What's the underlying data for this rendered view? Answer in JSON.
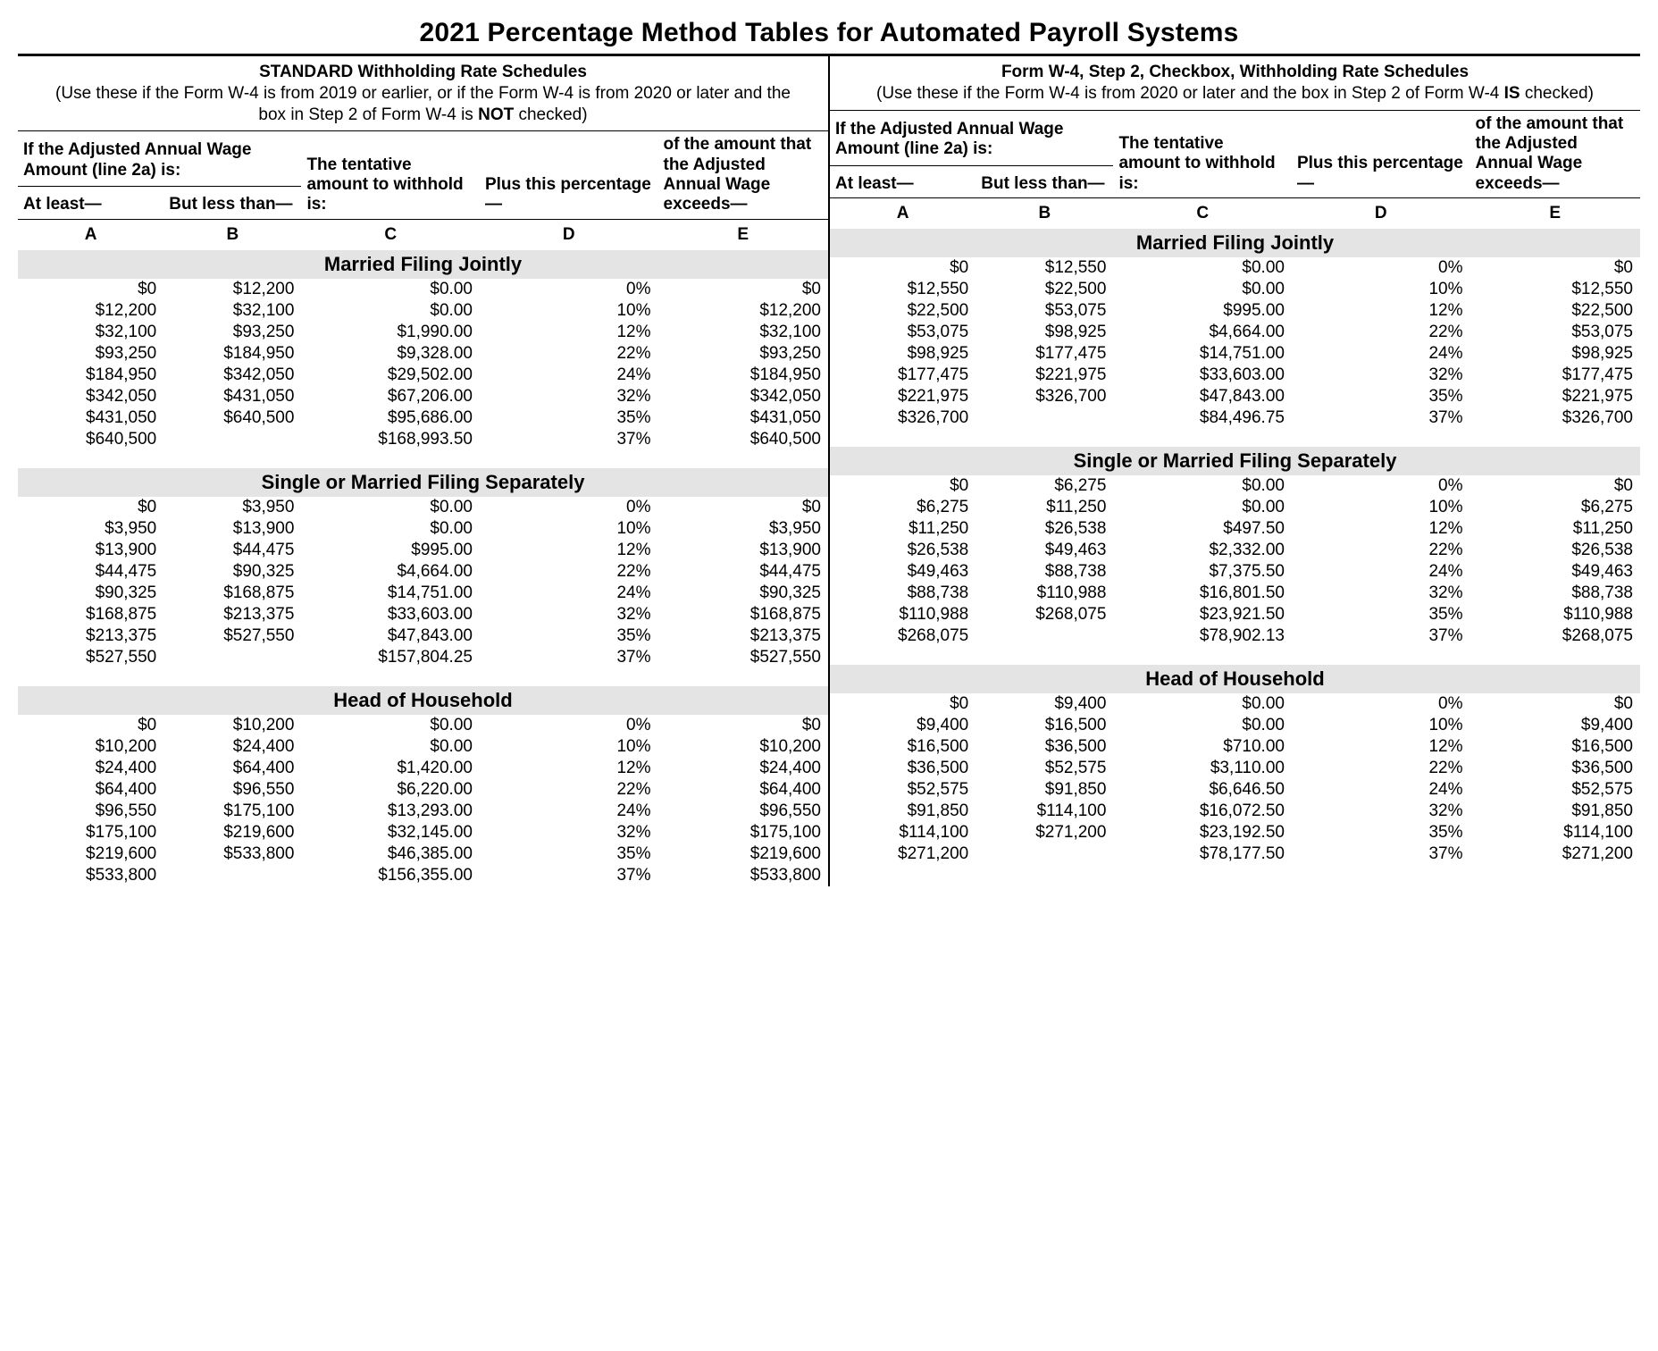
{
  "title": "2021 Percentage Method Tables for Automated Payroll Systems",
  "columns": {
    "upper_AB": "If the Adjusted Annual Wage Amount (line 2a) is:",
    "A": "At least—",
    "B": "But less than—",
    "C_upper": "The tentative",
    "C_lower": "amount to withhold is:",
    "D": "Plus this percentage—",
    "E_upper": "of the amount that the Adjusted",
    "E_lower": "Annual Wage exceeds—",
    "letters": [
      "A",
      "B",
      "C",
      "D",
      "E"
    ]
  },
  "left": {
    "head_bold": "STANDARD Withholding Rate Schedules",
    "head_plain_pre": "(Use these if the Form W-4 is from 2019 or earlier, or if the Form W-4 is from 2020 or later and the box in Step 2 of Form W-4 is ",
    "head_plain_bold": "NOT",
    "head_plain_post": " checked)",
    "sections": [
      {
        "name": "Married Filing Jointly",
        "rows": [
          [
            "$0",
            "$12,200",
            "$0.00",
            "0%",
            "$0"
          ],
          [
            "$12,200",
            "$32,100",
            "$0.00",
            "10%",
            "$12,200"
          ],
          [
            "$32,100",
            "$93,250",
            "$1,990.00",
            "12%",
            "$32,100"
          ],
          [
            "$93,250",
            "$184,950",
            "$9,328.00",
            "22%",
            "$93,250"
          ],
          [
            "$184,950",
            "$342,050",
            "$29,502.00",
            "24%",
            "$184,950"
          ],
          [
            "$342,050",
            "$431,050",
            "$67,206.00",
            "32%",
            "$342,050"
          ],
          [
            "$431,050",
            "$640,500",
            "$95,686.00",
            "35%",
            "$431,050"
          ],
          [
            "$640,500",
            "",
            "$168,993.50",
            "37%",
            "$640,500"
          ]
        ]
      },
      {
        "name": "Single or Married Filing Separately",
        "rows": [
          [
            "$0",
            "$3,950",
            "$0.00",
            "0%",
            "$0"
          ],
          [
            "$3,950",
            "$13,900",
            "$0.00",
            "10%",
            "$3,950"
          ],
          [
            "$13,900",
            "$44,475",
            "$995.00",
            "12%",
            "$13,900"
          ],
          [
            "$44,475",
            "$90,325",
            "$4,664.00",
            "22%",
            "$44,475"
          ],
          [
            "$90,325",
            "$168,875",
            "$14,751.00",
            "24%",
            "$90,325"
          ],
          [
            "$168,875",
            "$213,375",
            "$33,603.00",
            "32%",
            "$168,875"
          ],
          [
            "$213,375",
            "$527,550",
            "$47,843.00",
            "35%",
            "$213,375"
          ],
          [
            "$527,550",
            "",
            "$157,804.25",
            "37%",
            "$527,550"
          ]
        ]
      },
      {
        "name": "Head of Household",
        "rows": [
          [
            "$0",
            "$10,200",
            "$0.00",
            "0%",
            "$0"
          ],
          [
            "$10,200",
            "$24,400",
            "$0.00",
            "10%",
            "$10,200"
          ],
          [
            "$24,400",
            "$64,400",
            "$1,420.00",
            "12%",
            "$24,400"
          ],
          [
            "$64,400",
            "$96,550",
            "$6,220.00",
            "22%",
            "$64,400"
          ],
          [
            "$96,550",
            "$175,100",
            "$13,293.00",
            "24%",
            "$96,550"
          ],
          [
            "$175,100",
            "$219,600",
            "$32,145.00",
            "32%",
            "$175,100"
          ],
          [
            "$219,600",
            "$533,800",
            "$46,385.00",
            "35%",
            "$219,600"
          ],
          [
            "$533,800",
            "",
            "$156,355.00",
            "37%",
            "$533,800"
          ]
        ]
      }
    ]
  },
  "right": {
    "head_bold": "Form W-4, Step 2, Checkbox, Withholding Rate Schedules",
    "head_plain_pre": "(Use these if the Form W-4 is from 2020 or later and the box in Step 2 of Form W-4 ",
    "head_plain_bold": "IS",
    "head_plain_post": " checked)",
    "sections": [
      {
        "name": "Married Filing Jointly",
        "rows": [
          [
            "$0",
            "$12,550",
            "$0.00",
            "0%",
            "$0"
          ],
          [
            "$12,550",
            "$22,500",
            "$0.00",
            "10%",
            "$12,550"
          ],
          [
            "$22,500",
            "$53,075",
            "$995.00",
            "12%",
            "$22,500"
          ],
          [
            "$53,075",
            "$98,925",
            "$4,664.00",
            "22%",
            "$53,075"
          ],
          [
            "$98,925",
            "$177,475",
            "$14,751.00",
            "24%",
            "$98,925"
          ],
          [
            "$177,475",
            "$221,975",
            "$33,603.00",
            "32%",
            "$177,475"
          ],
          [
            "$221,975",
            "$326,700",
            "$47,843.00",
            "35%",
            "$221,975"
          ],
          [
            "$326,700",
            "",
            "$84,496.75",
            "37%",
            "$326,700"
          ]
        ]
      },
      {
        "name": "Single or Married Filing Separately",
        "rows": [
          [
            "$0",
            "$6,275",
            "$0.00",
            "0%",
            "$0"
          ],
          [
            "$6,275",
            "$11,250",
            "$0.00",
            "10%",
            "$6,275"
          ],
          [
            "$11,250",
            "$26,538",
            "$497.50",
            "12%",
            "$11,250"
          ],
          [
            "$26,538",
            "$49,463",
            "$2,332.00",
            "22%",
            "$26,538"
          ],
          [
            "$49,463",
            "$88,738",
            "$7,375.50",
            "24%",
            "$49,463"
          ],
          [
            "$88,738",
            "$110,988",
            "$16,801.50",
            "32%",
            "$88,738"
          ],
          [
            "$110,988",
            "$268,075",
            "$23,921.50",
            "35%",
            "$110,988"
          ],
          [
            "$268,075",
            "",
            "$78,902.13",
            "37%",
            "$268,075"
          ]
        ]
      },
      {
        "name": "Head of Household",
        "rows": [
          [
            "$0",
            "$9,400",
            "$0.00",
            "0%",
            "$0"
          ],
          [
            "$9,400",
            "$16,500",
            "$0.00",
            "10%",
            "$9,400"
          ],
          [
            "$16,500",
            "$36,500",
            "$710.00",
            "12%",
            "$16,500"
          ],
          [
            "$36,500",
            "$52,575",
            "$3,110.00",
            "22%",
            "$36,500"
          ],
          [
            "$52,575",
            "$91,850",
            "$6,646.50",
            "24%",
            "$52,575"
          ],
          [
            "$91,850",
            "$114,100",
            "$16,072.50",
            "32%",
            "$91,850"
          ],
          [
            "$114,100",
            "$271,200",
            "$23,192.50",
            "35%",
            "$114,100"
          ],
          [
            "$271,200",
            "",
            "$78,177.50",
            "37%",
            "$271,200"
          ]
        ]
      }
    ]
  }
}
